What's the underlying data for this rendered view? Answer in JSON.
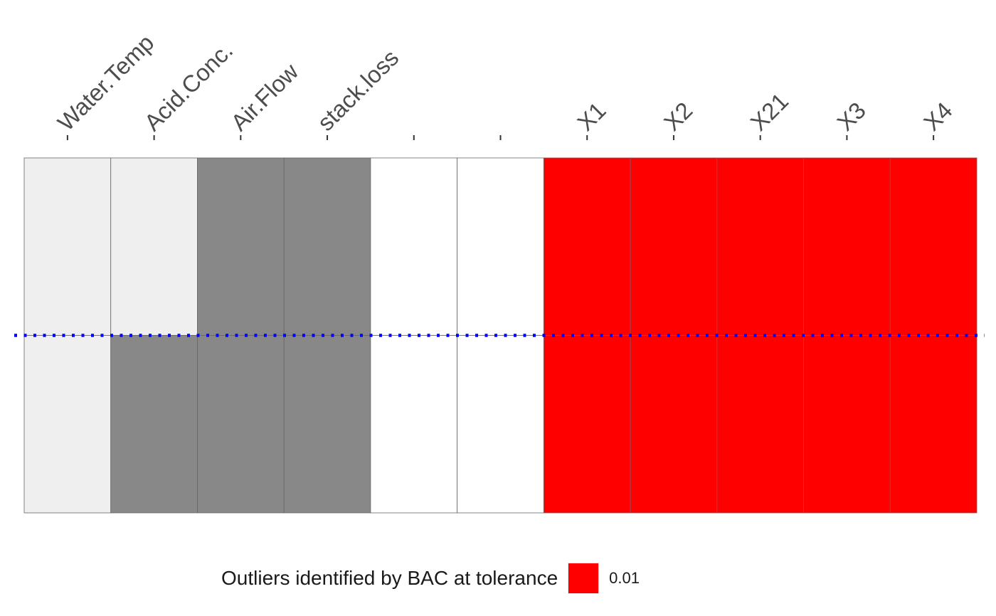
{
  "chart_data": {
    "type": "heatmap",
    "columns": [
      "Water.Temp",
      "Acid.Conc.",
      "Air.Flow",
      "stack.loss",
      "",
      "",
      "X1",
      "X2",
      "X21",
      "X3",
      "X4"
    ],
    "rows": 2,
    "cells": [
      [
        "light",
        "light",
        "dark",
        "dark",
        "white",
        "white",
        "red",
        "red",
        "red",
        "red",
        "red"
      ],
      [
        "light",
        "dark",
        "dark",
        "dark",
        "white",
        "white",
        "red",
        "red",
        "red",
        "red",
        "red"
      ]
    ],
    "fill_colors": {
      "light": "#efefef",
      "dark": "#888888",
      "white": "#ffffff",
      "red": "#ff0000"
    },
    "cell_border_color": "#666666",
    "reference_line": {
      "style": "dotted",
      "color": "#0000ff"
    },
    "legend": {
      "title": "Outliers identified by BAC at tolerance",
      "items": [
        {
          "label": "0.01",
          "color": "#ff0000"
        }
      ],
      "position": "bottom"
    }
  }
}
